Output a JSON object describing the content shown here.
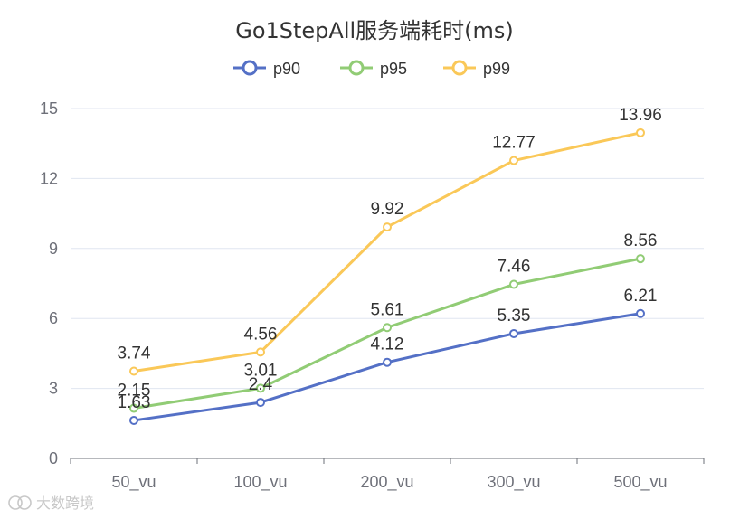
{
  "chart_data": {
    "type": "line",
    "title": "Go1StepAll服务端耗时(ms)",
    "categories": [
      "50_vu",
      "100_vu",
      "200_vu",
      "300_vu",
      "500_vu"
    ],
    "series": [
      {
        "name": "p90",
        "color": "#5470c6",
        "values": [
          1.63,
          2.4,
          4.12,
          5.35,
          6.21
        ]
      },
      {
        "name": "p95",
        "color": "#91cc75",
        "values": [
          2.15,
          3.01,
          5.61,
          7.46,
          8.56
        ]
      },
      {
        "name": "p99",
        "color": "#fac858",
        "values": [
          3.74,
          4.56,
          9.92,
          12.77,
          13.96
        ]
      }
    ],
    "yticks": [
      "0",
      "3",
      "6",
      "9",
      "12",
      "15"
    ],
    "ylim": [
      0,
      15
    ],
    "grid": true,
    "legend": "top-center",
    "xlabel": "",
    "ylabel": ""
  },
  "watermark": {
    "text": "大数跨境",
    "icon": "logo-icon"
  }
}
